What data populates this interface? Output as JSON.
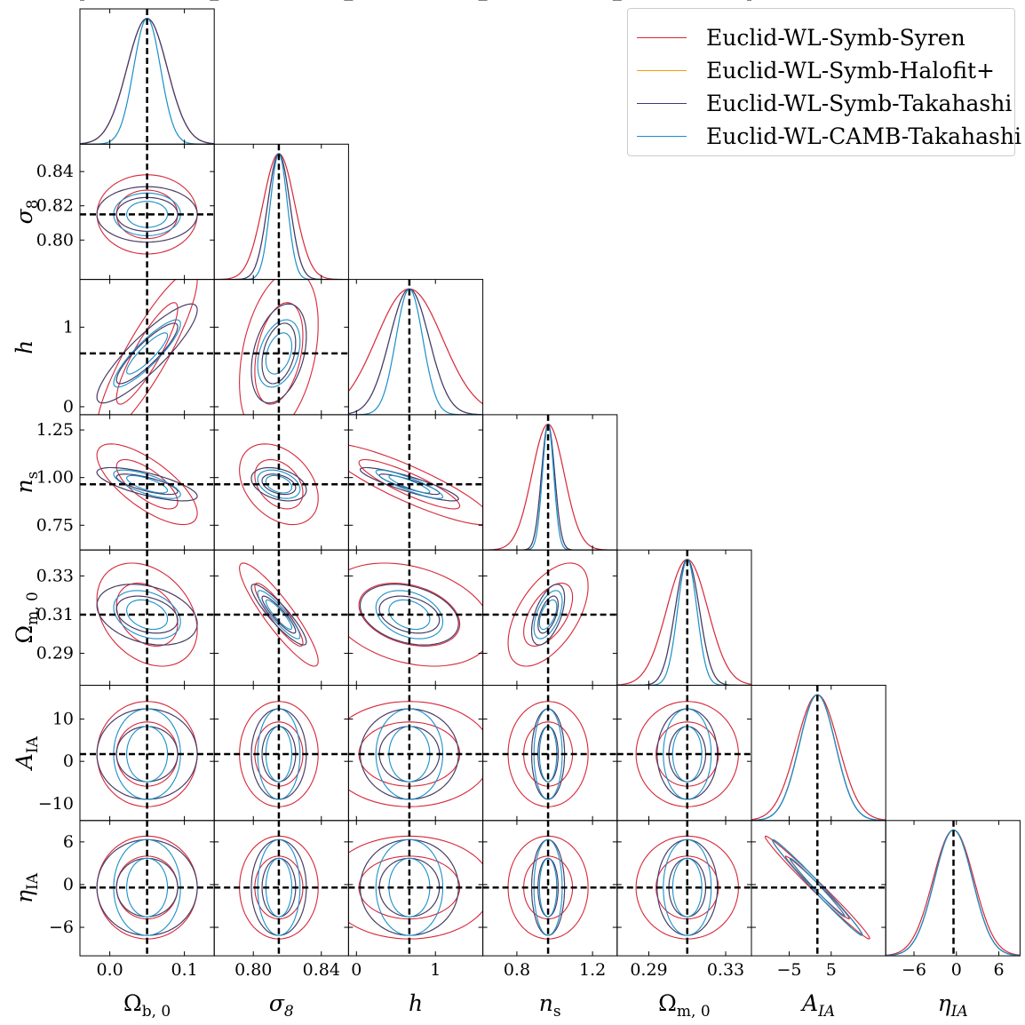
{
  "chart_data": {
    "type": "corner",
    "title": "",
    "parameters": [
      {
        "key": "Omega_b0",
        "label": "Ω",
        "sub": "b, 0",
        "italic": false,
        "fiducial": 0.05,
        "range": [
          -0.04,
          0.14
        ],
        "ticks": [
          0.0,
          0.1
        ],
        "tick_labels": [
          "0.0",
          "0.1"
        ]
      },
      {
        "key": "sigma8",
        "label": "σ",
        "sub": "8",
        "italic": true,
        "fiducial": 0.815,
        "range": [
          0.777,
          0.856
        ],
        "ticks": [
          0.8,
          0.84
        ],
        "tick_labels": [
          "0.80",
          "0.84"
        ],
        "y_tick_labels": [
          "0.80",
          "0.82",
          "0.84"
        ]
      },
      {
        "key": "h",
        "label": "h",
        "sub": "",
        "italic": true,
        "fiducial": 0.67,
        "range": [
          -0.1,
          1.6
        ],
        "ticks": [
          0,
          1
        ],
        "tick_labels": [
          "0",
          "1"
        ]
      },
      {
        "key": "n_s",
        "label": "n",
        "sub": "s",
        "italic": true,
        "fiducial": 0.965,
        "range": [
          0.62,
          1.33
        ],
        "ticks": [
          0.8,
          1.2
        ],
        "tick_labels": [
          "0.8",
          "1.2"
        ],
        "y_tick_labels": [
          "0.75",
          "1.00",
          "1.25"
        ]
      },
      {
        "key": "Omega_m0",
        "label": "Ω",
        "sub": "m, 0",
        "italic": false,
        "fiducial": 0.31,
        "range": [
          0.2735,
          0.3434
        ],
        "ticks": [
          0.29,
          0.33
        ],
        "tick_labels": [
          "0.29",
          "0.33"
        ],
        "y_tick_labels": [
          "0.29",
          "0.31",
          "0.33"
        ]
      },
      {
        "key": "A_IA",
        "label": "A",
        "sub": "IA",
        "italic": true,
        "fiducial": 1.72,
        "range": [
          -14,
          18
        ],
        "ticks": [
          -5,
          5
        ],
        "tick_labels": [
          "−5",
          "5"
        ],
        "y_tick_labels": [
          "−10",
          "0",
          "10"
        ]
      },
      {
        "key": "eta_IA",
        "label": "η",
        "sub": "IA",
        "italic": true,
        "fiducial": -0.41,
        "range": [
          -10,
          9
        ],
        "ticks": [
          -6,
          0,
          6
        ],
        "tick_labels": [
          "−6",
          "0",
          "6"
        ]
      }
    ],
    "series": [
      {
        "name": "Euclid-WL-Symb-Syren",
        "color": "#d62738",
        "sigma": [
          0.027,
          0.0093,
          0.42,
          0.085,
          0.0107,
          5.0,
          2.9
        ]
      },
      {
        "name": "Euclid-WL-Symb-Halofit+",
        "color": "#f39c12",
        "sigma": [
          0.027,
          0.0065,
          0.25,
          0.035,
          0.0063,
          4.3,
          2.7
        ]
      },
      {
        "name": "Euclid-WL-Symb-Takahashi",
        "color": "#3b3b7a",
        "sigma": [
          0.027,
          0.0065,
          0.25,
          0.035,
          0.0063,
          4.3,
          2.7
        ]
      },
      {
        "name": "Euclid-WL-CAMB-Takahashi",
        "color": "#1a8fc9",
        "sigma": [
          0.018,
          0.005,
          0.17,
          0.03,
          0.005,
          4.3,
          2.7
        ]
      }
    ],
    "correlations": {
      "0-2": 0.88,
      "0-3": -0.72,
      "0-4": -0.3,
      "1-2": 0.35,
      "1-3": -0.35,
      "1-4": -0.9,
      "2-3": -0.88,
      "2-4": -0.3,
      "3-4": 0.55,
      "5-6": -0.99
    },
    "contour_levels_sigma": [
      1.52,
      2.49
    ],
    "legend_position": "top-right",
    "grid": false
  }
}
